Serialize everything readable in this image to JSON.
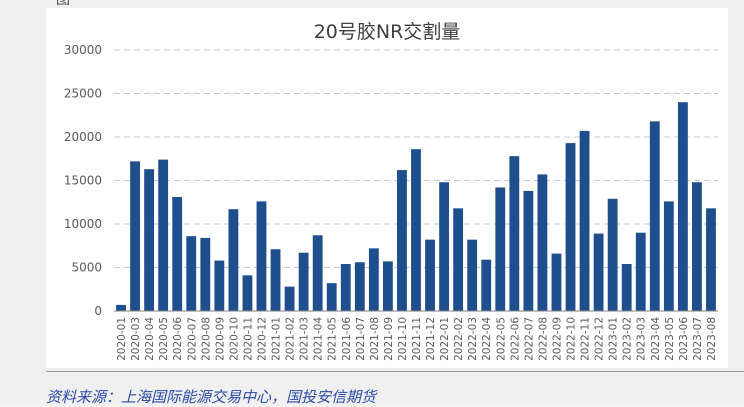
{
  "header": {
    "truncated_text": "图                                         "
  },
  "source_note": "资料来源：上海国际能源交易中心，国投安信期货",
  "colors": {
    "bar": "#1f4e8c",
    "grid": "#c8c8c8",
    "axis": "#808080",
    "text": "#595959"
  },
  "chart_data": {
    "type": "bar",
    "title": "20号胶NR交割量",
    "xlabel": "",
    "ylabel": "",
    "ylim": [
      0,
      30000
    ],
    "yticks": [
      0,
      5000,
      10000,
      15000,
      20000,
      25000,
      30000
    ],
    "grid": "horizontal dashed",
    "legend": "none",
    "categories": [
      "2020-01",
      "2020-03",
      "2020-04",
      "2020-05",
      "2020-06",
      "2020-07",
      "2020-08",
      "2020-09",
      "2020-10",
      "2020-11",
      "2020-12",
      "2021-01",
      "2021-02",
      "2021-03",
      "2021-04",
      "2021-05",
      "2021-06",
      "2021-07",
      "2021-08",
      "2021-09",
      "2021-10",
      "2021-11",
      "2021-12",
      "2022-01",
      "2022-02",
      "2022-03",
      "2022-04",
      "2022-05",
      "2022-06",
      "2022-07",
      "2022-08",
      "2022-09",
      "2022-10",
      "2022-11",
      "2022-12",
      "2023-01",
      "2023-02",
      "2023-03",
      "2023-04",
      "2023-05",
      "2023-06",
      "2023-07",
      "2023-08"
    ],
    "values": [
      700,
      17200,
      16300,
      17400,
      13100,
      8600,
      8400,
      5800,
      11700,
      4100,
      12600,
      7100,
      2800,
      6700,
      8700,
      3200,
      5400,
      5600,
      7200,
      5700,
      16200,
      18600,
      8200,
      14800,
      11800,
      8200,
      5900,
      14200,
      17800,
      13800,
      15700,
      6600,
      19300,
      20700,
      8900,
      12900,
      5400,
      9000,
      21800,
      12600,
      24000,
      14800,
      11800
    ]
  }
}
